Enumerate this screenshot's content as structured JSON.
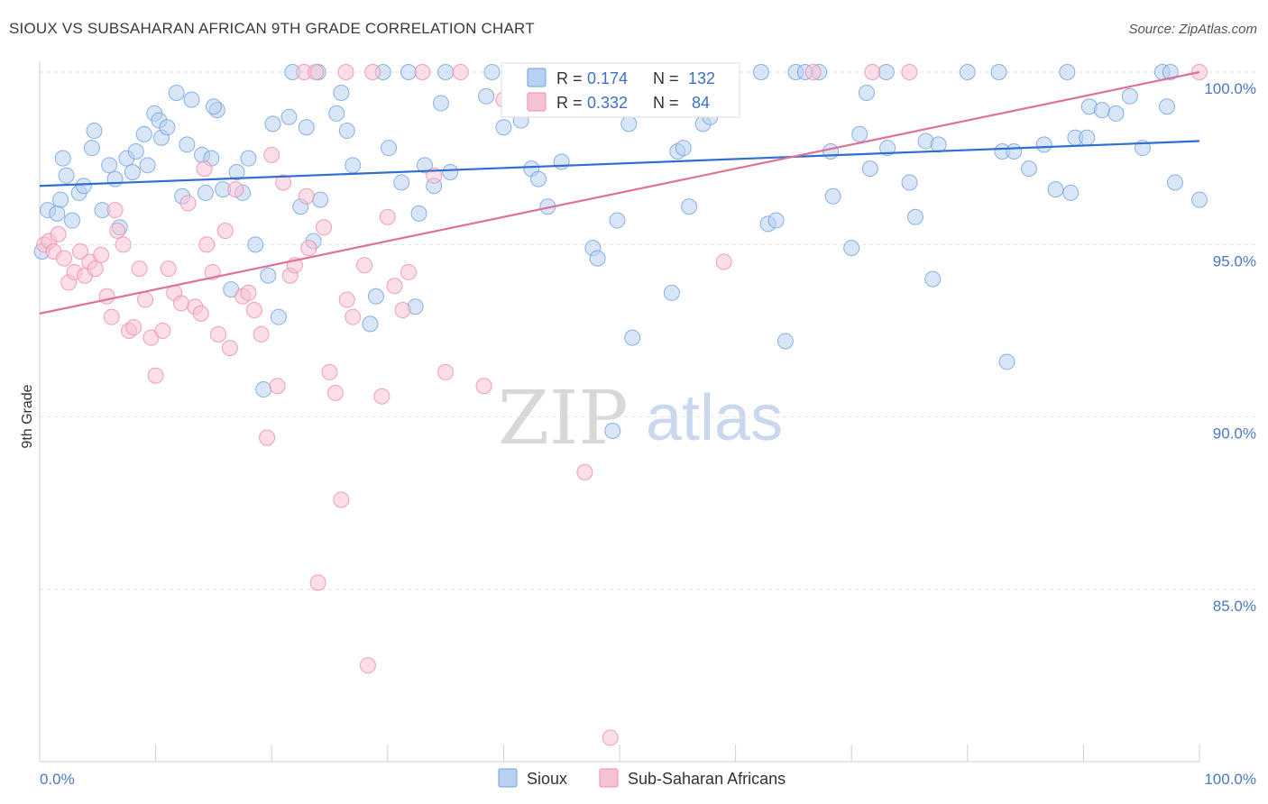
{
  "header": {
    "title": "SIOUX VS SUBSAHARAN AFRICAN 9TH GRADE CORRELATION CHART",
    "source": "Source: ZipAtlas.com"
  },
  "watermark": {
    "zip": "ZIP",
    "atlas": "atlas"
  },
  "colors": {
    "sioux": "#6f9fe0",
    "sioux_fill": "#b8d1f2",
    "sioux_line": "#2f6fcf",
    "subsaharan": "#ee8aaa",
    "subsaharan_fill": "#f7c3d4",
    "subsaharan_line": "#e0709a",
    "tick_text": "#4a78c2",
    "grid": "#e2e2e2"
  },
  "stats": {
    "rows": [
      {
        "r_label": "R =",
        "r_value": "0.174",
        "n_label": "N =",
        "n_value": "132"
      },
      {
        "r_label": "R =",
        "r_value": "0.332",
        "n_label": "N =",
        "n_value": "84"
      }
    ]
  },
  "chart_data": {
    "type": "scatter",
    "title": "SIOUX VS SUBSAHARAN AFRICAN 9TH GRADE CORRELATION CHART",
    "xlabel": "",
    "ylabel": "9th Grade",
    "xlim": [
      0,
      100
    ],
    "ylim": [
      80.5,
      100.4
    ],
    "x_tick_labels": [
      "0.0%",
      "100.0%"
    ],
    "y_ticks": [
      85,
      90,
      95,
      100
    ],
    "y_tick_labels": [
      "85.0%",
      "90.0%",
      "95.0%",
      "100.0%"
    ],
    "grid": "horizontal dashed",
    "legend": "bottom-center",
    "series": [
      {
        "name": "Sioux",
        "r": 0.174,
        "n": 132,
        "trend": {
          "x": [
            0,
            100
          ],
          "y": [
            96.7,
            98.0
          ]
        },
        "points": [
          [
            0.2,
            94.8
          ],
          [
            0.7,
            96.0
          ],
          [
            1.5,
            95.9
          ],
          [
            1.8,
            96.3
          ],
          [
            2.3,
            97.0
          ],
          [
            2.8,
            95.7
          ],
          [
            3.4,
            96.5
          ],
          [
            3.8,
            96.7
          ],
          [
            4.5,
            97.8
          ],
          [
            4.7,
            98.3
          ],
          [
            5.4,
            96.0
          ],
          [
            6.0,
            97.3
          ],
          [
            6.5,
            96.9
          ],
          [
            6.9,
            95.5
          ],
          [
            7.5,
            97.5
          ],
          [
            8.0,
            97.1
          ],
          [
            8.3,
            97.7
          ],
          [
            9.0,
            98.2
          ],
          [
            9.3,
            97.3
          ],
          [
            9.9,
            98.8
          ],
          [
            10.3,
            98.6
          ],
          [
            10.5,
            98.1
          ],
          [
            11.0,
            98.4
          ],
          [
            11.8,
            99.4
          ],
          [
            12.3,
            96.4
          ],
          [
            12.7,
            97.9
          ],
          [
            13.1,
            99.2
          ],
          [
            14.0,
            97.6
          ],
          [
            14.3,
            96.5
          ],
          [
            14.8,
            97.5
          ],
          [
            15.3,
            98.9
          ],
          [
            15.8,
            96.6
          ],
          [
            16.5,
            93.7
          ],
          [
            17.0,
            97.1
          ],
          [
            17.5,
            96.5
          ],
          [
            18.0,
            97.5
          ],
          [
            18.6,
            95.0
          ],
          [
            19.3,
            90.8
          ],
          [
            19.7,
            94.1
          ],
          [
            20.1,
            98.5
          ],
          [
            20.6,
            92.9
          ],
          [
            21.5,
            98.7
          ],
          [
            21.8,
            100.0
          ],
          [
            22.5,
            96.1
          ],
          [
            23.0,
            98.4
          ],
          [
            23.6,
            95.1
          ],
          [
            24.0,
            100.0
          ],
          [
            24.2,
            96.3
          ],
          [
            25.6,
            98.8
          ],
          [
            26.0,
            99.4
          ],
          [
            26.5,
            98.3
          ],
          [
            27.0,
            97.3
          ],
          [
            28.5,
            92.7
          ],
          [
            29.0,
            93.5
          ],
          [
            29.6,
            100.0
          ],
          [
            30.1,
            97.8
          ],
          [
            31.2,
            96.8
          ],
          [
            31.8,
            100.0
          ],
          [
            32.4,
            93.2
          ],
          [
            32.7,
            95.9
          ],
          [
            33.2,
            97.3
          ],
          [
            34.0,
            96.7
          ],
          [
            34.6,
            99.1
          ],
          [
            35.0,
            100.0
          ],
          [
            35.4,
            97.1
          ],
          [
            38.5,
            99.3
          ],
          [
            39.0,
            100.0
          ],
          [
            40.0,
            98.4
          ],
          [
            42.4,
            97.2
          ],
          [
            43.0,
            96.9
          ],
          [
            43.8,
            96.1
          ],
          [
            47.0,
            100.0
          ],
          [
            47.7,
            94.9
          ],
          [
            48.1,
            94.6
          ],
          [
            49.4,
            89.6
          ],
          [
            49.8,
            95.7
          ],
          [
            50.8,
            98.5
          ],
          [
            51.1,
            92.3
          ],
          [
            52.0,
            100.0
          ],
          [
            54.5,
            93.6
          ],
          [
            55.0,
            97.7
          ],
          [
            55.5,
            97.8
          ],
          [
            57.2,
            98.5
          ],
          [
            57.8,
            98.7
          ],
          [
            58.5,
            100.0
          ],
          [
            62.2,
            100.0
          ],
          [
            62.8,
            95.6
          ],
          [
            63.5,
            95.7
          ],
          [
            64.3,
            92.2
          ],
          [
            65.2,
            100.0
          ],
          [
            66.0,
            100.0
          ],
          [
            67.2,
            100.0
          ],
          [
            68.2,
            97.7
          ],
          [
            68.4,
            96.4
          ],
          [
            70.0,
            94.9
          ],
          [
            70.7,
            98.2
          ],
          [
            71.3,
            99.4
          ],
          [
            71.6,
            97.2
          ],
          [
            73.1,
            97.8
          ],
          [
            75.0,
            96.8
          ],
          [
            75.5,
            95.8
          ],
          [
            76.4,
            98.0
          ],
          [
            77.0,
            94.0
          ],
          [
            77.5,
            97.9
          ],
          [
            80.0,
            100.0
          ],
          [
            82.7,
            100.0
          ],
          [
            83.0,
            97.7
          ],
          [
            83.4,
            91.6
          ],
          [
            84.0,
            97.7
          ],
          [
            85.3,
            97.2
          ],
          [
            86.6,
            97.9
          ],
          [
            87.6,
            96.6
          ],
          [
            88.6,
            100.0
          ],
          [
            88.9,
            96.5
          ],
          [
            89.3,
            98.1
          ],
          [
            90.3,
            98.1
          ],
          [
            90.5,
            99.0
          ],
          [
            91.6,
            98.9
          ],
          [
            92.8,
            98.8
          ],
          [
            94.0,
            99.3
          ],
          [
            95.1,
            97.8
          ],
          [
            96.8,
            100.0
          ],
          [
            97.2,
            99.0
          ],
          [
            97.5,
            100.0
          ],
          [
            97.9,
            96.8
          ],
          [
            100.0,
            96.3
          ],
          [
            2.0,
            97.5
          ],
          [
            15.0,
            99.0
          ],
          [
            41.5,
            98.6
          ],
          [
            56.0,
            96.1
          ],
          [
            73.0,
            100.0
          ],
          [
            45.0,
            97.4
          ]
        ]
      },
      {
        "name": "Sub-Saharan Africans",
        "r": 0.332,
        "n": 84,
        "trend": {
          "x": [
            0,
            100
          ],
          "y": [
            93.0,
            100.0
          ]
        },
        "points": [
          [
            0.4,
            95.0
          ],
          [
            0.8,
            95.1
          ],
          [
            1.2,
            94.8
          ],
          [
            1.6,
            95.3
          ],
          [
            2.1,
            94.6
          ],
          [
            2.5,
            93.9
          ],
          [
            3.0,
            94.2
          ],
          [
            3.5,
            94.8
          ],
          [
            3.9,
            94.1
          ],
          [
            4.3,
            94.5
          ],
          [
            4.8,
            94.3
          ],
          [
            5.3,
            94.7
          ],
          [
            5.8,
            93.5
          ],
          [
            6.2,
            92.9
          ],
          [
            6.7,
            95.4
          ],
          [
            7.2,
            95.0
          ],
          [
            7.7,
            92.5
          ],
          [
            8.1,
            92.6
          ],
          [
            8.6,
            94.3
          ],
          [
            9.1,
            93.4
          ],
          [
            9.6,
            92.3
          ],
          [
            10.0,
            91.2
          ],
          [
            10.6,
            92.5
          ],
          [
            11.1,
            94.3
          ],
          [
            11.6,
            93.6
          ],
          [
            12.2,
            93.3
          ],
          [
            12.8,
            96.2
          ],
          [
            13.4,
            93.2
          ],
          [
            13.9,
            93.0
          ],
          [
            14.4,
            95.0
          ],
          [
            14.9,
            94.2
          ],
          [
            15.4,
            92.4
          ],
          [
            16.0,
            95.4
          ],
          [
            16.4,
            92.0
          ],
          [
            16.9,
            96.6
          ],
          [
            17.5,
            93.5
          ],
          [
            18.0,
            93.6
          ],
          [
            18.5,
            93.1
          ],
          [
            19.1,
            92.4
          ],
          [
            19.6,
            89.4
          ],
          [
            20.0,
            97.6
          ],
          [
            20.5,
            90.9
          ],
          [
            21.0,
            96.8
          ],
          [
            21.6,
            94.1
          ],
          [
            22.0,
            94.4
          ],
          [
            22.8,
            100.0
          ],
          [
            23.2,
            94.9
          ],
          [
            23.8,
            100.0
          ],
          [
            24.5,
            95.5
          ],
          [
            24.0,
            85.2
          ],
          [
            25.0,
            91.3
          ],
          [
            25.5,
            90.7
          ],
          [
            26.0,
            87.6
          ],
          [
            26.5,
            93.4
          ],
          [
            27.0,
            92.9
          ],
          [
            28.0,
            94.4
          ],
          [
            28.3,
            82.8
          ],
          [
            28.7,
            100.0
          ],
          [
            29.5,
            90.6
          ],
          [
            30.0,
            95.8
          ],
          [
            30.6,
            93.8
          ],
          [
            31.3,
            93.1
          ],
          [
            31.8,
            94.2
          ],
          [
            33.0,
            100.0
          ],
          [
            34.0,
            97.0
          ],
          [
            35.0,
            91.3
          ],
          [
            36.3,
            100.0
          ],
          [
            38.3,
            90.9
          ],
          [
            40.0,
            99.2
          ],
          [
            42.0,
            100.0
          ],
          [
            47.0,
            88.4
          ],
          [
            49.2,
            80.7
          ],
          [
            52.5,
            100.0
          ],
          [
            55.0,
            99.3
          ],
          [
            59.0,
            94.5
          ],
          [
            66.7,
            100.0
          ],
          [
            71.8,
            100.0
          ],
          [
            75.0,
            100.0
          ],
          [
            100.0,
            100.0
          ],
          [
            26.4,
            100.0
          ],
          [
            23.0,
            96.4
          ],
          [
            14.2,
            97.2
          ],
          [
            6.5,
            96.0
          ],
          [
            44.0,
            100.0
          ]
        ]
      }
    ]
  },
  "legend": {
    "items": [
      {
        "label": "Sioux"
      },
      {
        "label": "Sub-Saharan Africans"
      }
    ]
  }
}
